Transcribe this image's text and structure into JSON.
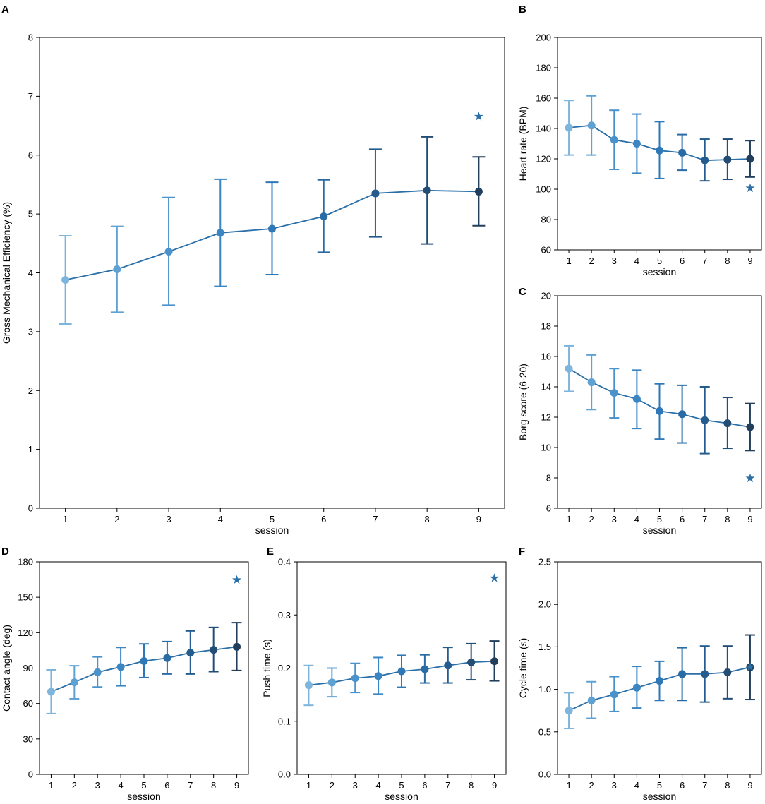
{
  "figure": {
    "palette": [
      "#7db5dd",
      "#5ea1d3",
      "#4a92cc",
      "#3a85c2",
      "#2f78b7",
      "#296ba5",
      "#255c8e",
      "#234d75",
      "#213f5c"
    ],
    "line_color": "#2a6fa8",
    "star_color": "#2a6fa8"
  },
  "chart_data": [
    {
      "id": "A",
      "letter": "A",
      "type": "line",
      "title": "",
      "xlabel": "session",
      "ylabel": "Gross Mechanical Efficiency (%)",
      "x": [
        1,
        2,
        3,
        4,
        5,
        6,
        7,
        8,
        9
      ],
      "x_ticks": [
        "1",
        "2",
        "3",
        "4",
        "5",
        "6",
        "7",
        "8",
        "9"
      ],
      "xlim": [
        0.5,
        9.5
      ],
      "ylim": [
        0,
        8
      ],
      "y_ticks": [
        0,
        1,
        2,
        3,
        4,
        5,
        6,
        7,
        8
      ],
      "y_tick_labels": [
        "0",
        "1",
        "2",
        "3",
        "4",
        "5",
        "6",
        "7",
        "8"
      ],
      "series": [
        {
          "name": "mean",
          "values": [
            3.88,
            4.06,
            4.36,
            4.68,
            4.75,
            4.96,
            5.35,
            5.4,
            5.38
          ],
          "err_low": [
            3.13,
            3.33,
            3.45,
            3.77,
            3.97,
            4.35,
            4.61,
            4.49,
            4.8
          ],
          "err_high": [
            4.63,
            4.79,
            5.28,
            5.59,
            5.54,
            5.58,
            6.1,
            6.31,
            5.97
          ]
        }
      ],
      "annotation": {
        "symbol": "★",
        "x": 9,
        "y": 6.66
      }
    },
    {
      "id": "B",
      "letter": "B",
      "type": "line",
      "title": "",
      "xlabel": "session",
      "ylabel": "Heart rate (BPM)",
      "x": [
        1,
        2,
        3,
        4,
        5,
        6,
        7,
        8,
        9
      ],
      "x_ticks": [
        "1",
        "2",
        "3",
        "4",
        "5",
        "6",
        "7",
        "8",
        "9"
      ],
      "xlim": [
        0.5,
        9.5
      ],
      "ylim": [
        60,
        200
      ],
      "y_ticks": [
        60,
        80,
        100,
        120,
        140,
        160,
        180,
        200
      ],
      "y_tick_labels": [
        "60",
        "80",
        "100",
        "120",
        "140",
        "160",
        "180",
        "200"
      ],
      "series": [
        {
          "name": "mean",
          "values": [
            140.5,
            142.0,
            132.5,
            130.0,
            125.5,
            124.0,
            119.0,
            119.5,
            120.0
          ],
          "err_low": [
            122.5,
            122.5,
            113.0,
            110.5,
            107.0,
            112.5,
            105.5,
            106.5,
            108.0
          ],
          "err_high": [
            158.5,
            161.5,
            152.0,
            149.5,
            144.5,
            136.0,
            133.0,
            133.0,
            132.0
          ]
        }
      ],
      "annotation": {
        "symbol": "★",
        "x": 9,
        "y": 101
      }
    },
    {
      "id": "C",
      "letter": "C",
      "type": "line",
      "title": "",
      "xlabel": "session",
      "ylabel": "Borg score (6-20)",
      "x": [
        1,
        2,
        3,
        4,
        5,
        6,
        7,
        8,
        9
      ],
      "x_ticks": [
        "1",
        "2",
        "3",
        "4",
        "5",
        "6",
        "7",
        "8",
        "9"
      ],
      "xlim": [
        0.5,
        9.5
      ],
      "ylim": [
        6,
        20
      ],
      "y_ticks": [
        6,
        8,
        10,
        12,
        14,
        16,
        18,
        20
      ],
      "y_tick_labels": [
        "6",
        "8",
        "10",
        "12",
        "14",
        "16",
        "18",
        "20"
      ],
      "series": [
        {
          "name": "mean",
          "values": [
            15.2,
            14.3,
            13.6,
            13.2,
            12.4,
            12.2,
            11.8,
            11.6,
            11.35
          ],
          "err_low": [
            13.7,
            12.5,
            11.95,
            11.25,
            10.55,
            10.3,
            9.6,
            9.95,
            9.8
          ],
          "err_high": [
            16.7,
            16.1,
            15.2,
            15.1,
            14.2,
            14.1,
            14.0,
            13.3,
            12.9
          ]
        }
      ],
      "annotation": {
        "symbol": "★",
        "x": 9,
        "y": 8.0
      }
    },
    {
      "id": "D",
      "letter": "D",
      "type": "line",
      "title": "",
      "xlabel": "session",
      "ylabel": "Contact angle (deg)",
      "x": [
        1,
        2,
        3,
        4,
        5,
        6,
        7,
        8,
        9
      ],
      "x_ticks": [
        "1",
        "2",
        "3",
        "4",
        "5",
        "6",
        "7",
        "8",
        "9"
      ],
      "xlim": [
        0.5,
        9.5
      ],
      "ylim": [
        0,
        180
      ],
      "y_ticks": [
        0,
        30,
        60,
        90,
        120,
        150,
        180
      ],
      "y_tick_labels": [
        "0",
        "30",
        "60",
        "90",
        "120",
        "150",
        "180"
      ],
      "series": [
        {
          "name": "mean",
          "values": [
            70,
            78,
            86.5,
            91,
            96,
            98.5,
            103,
            105.5,
            108
          ],
          "err_low": [
            51.5,
            64,
            74,
            75,
            82,
            85,
            85,
            87,
            88
          ],
          "err_high": [
            88.5,
            92,
            99.5,
            107.5,
            110.5,
            112.5,
            121.5,
            124.5,
            128.5
          ]
        }
      ],
      "annotation": {
        "symbol": "★",
        "x": 9,
        "y": 165
      }
    },
    {
      "id": "E",
      "letter": "E",
      "type": "line",
      "title": "",
      "xlabel": "session",
      "ylabel": "Push time (s)",
      "x": [
        1,
        2,
        3,
        4,
        5,
        6,
        7,
        8,
        9
      ],
      "x_ticks": [
        "1",
        "2",
        "3",
        "4",
        "5",
        "6",
        "7",
        "8",
        "9"
      ],
      "xlim": [
        0.5,
        9.5
      ],
      "ylim": [
        0,
        0.4
      ],
      "y_ticks": [
        0,
        0.1,
        0.2,
        0.3,
        0.4
      ],
      "y_tick_labels": [
        "0.0",
        "0.1",
        "0.2",
        "0.3",
        "0.4"
      ],
      "series": [
        {
          "name": "mean",
          "values": [
            0.168,
            0.173,
            0.181,
            0.185,
            0.194,
            0.198,
            0.205,
            0.211,
            0.213
          ],
          "err_low": [
            0.13,
            0.146,
            0.154,
            0.151,
            0.164,
            0.172,
            0.172,
            0.178,
            0.176
          ],
          "err_high": [
            0.205,
            0.2,
            0.209,
            0.22,
            0.224,
            0.225,
            0.239,
            0.246,
            0.251
          ]
        }
      ],
      "annotation": {
        "symbol": "★",
        "x": 9,
        "y": 0.37
      }
    },
    {
      "id": "F",
      "letter": "F",
      "type": "line",
      "title": "",
      "xlabel": "session",
      "ylabel": "Cycle time (s)",
      "x": [
        1,
        2,
        3,
        4,
        5,
        6,
        7,
        8,
        9
      ],
      "x_ticks": [
        "1",
        "2",
        "3",
        "4",
        "5",
        "6",
        "7",
        "8",
        "9"
      ],
      "xlim": [
        0.5,
        9.5
      ],
      "ylim": [
        0,
        2.5
      ],
      "y_ticks": [
        0,
        0.5,
        1.0,
        1.5,
        2.0,
        2.5
      ],
      "y_tick_labels": [
        "0.0",
        "0.5",
        "1.0",
        "1.5",
        "2.0",
        "2.5"
      ],
      "series": [
        {
          "name": "mean",
          "values": [
            0.75,
            0.87,
            0.94,
            1.02,
            1.1,
            1.18,
            1.18,
            1.2,
            1.26
          ],
          "err_low": [
            0.54,
            0.66,
            0.74,
            0.78,
            0.87,
            0.87,
            0.85,
            0.89,
            0.88
          ],
          "err_high": [
            0.96,
            1.09,
            1.15,
            1.27,
            1.33,
            1.49,
            1.51,
            1.51,
            1.64
          ]
        }
      ],
      "annotation": {
        "symbol": "★",
        "x": 9,
        "y": 1.265
      }
    }
  ]
}
